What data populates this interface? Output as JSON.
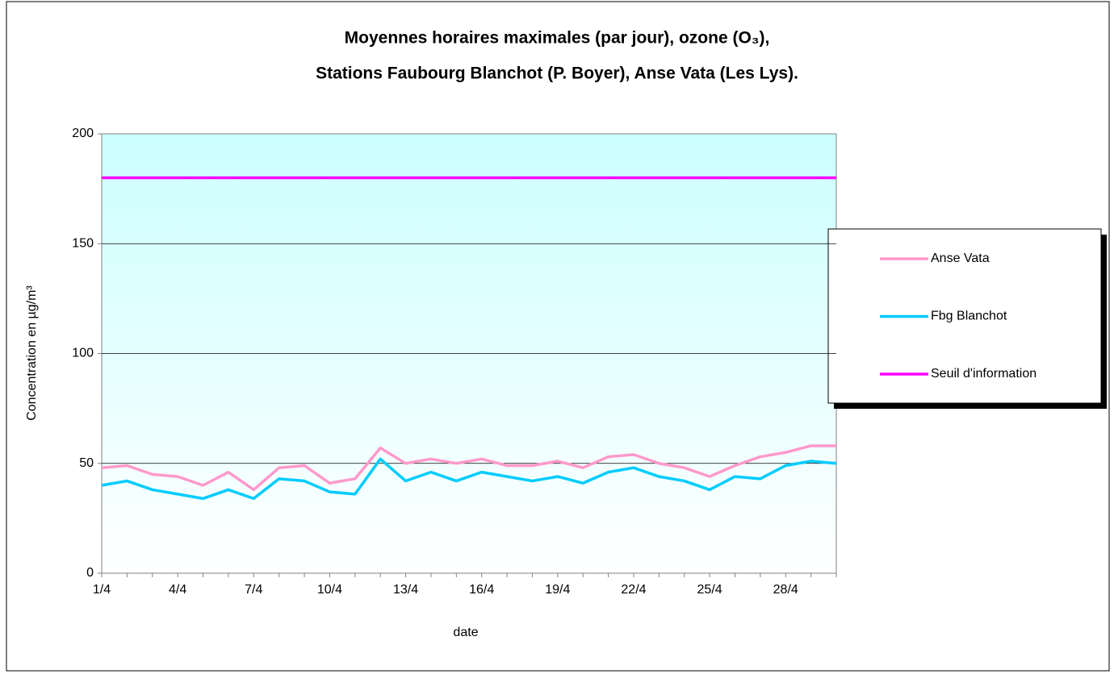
{
  "chart_data": {
    "type": "line",
    "title": [
      "Moyennes horaires maximales (par jour), ozone (O₃),",
      "Stations Faubourg Blanchot (P. Boyer), Anse Vata (Les Lys)."
    ],
    "x_label": "date",
    "y_label": "Concentration en µg/m³",
    "categories": [
      "1/4",
      null,
      null,
      "4/4",
      null,
      null,
      "7/4",
      null,
      null,
      "10/4",
      null,
      null,
      "13/4",
      null,
      null,
      "16/4",
      null,
      null,
      "19/4",
      null,
      null,
      "22/4",
      null,
      null,
      "25/4",
      null,
      null,
      "28/4",
      null,
      null
    ],
    "series": [
      {
        "name": "Anse Vata",
        "color": "#ff99cc",
        "values": [
          48,
          49,
          45,
          44,
          40,
          46,
          38,
          48,
          49,
          41,
          43,
          57,
          50,
          52,
          50,
          52,
          49,
          49,
          51,
          48,
          53,
          54,
          50,
          48,
          44,
          49,
          53,
          55,
          58,
          58
        ]
      },
      {
        "name": "Fbg Blanchot",
        "color": "#00ccff",
        "values": [
          40,
          42,
          38,
          36,
          34,
          38,
          34,
          43,
          42,
          37,
          36,
          52,
          42,
          46,
          42,
          46,
          44,
          42,
          44,
          41,
          46,
          48,
          44,
          42,
          38,
          44,
          43,
          49,
          51,
          50
        ]
      },
      {
        "name": "Seuil d'information",
        "color": "#ff00ff",
        "values": [
          180,
          180,
          180,
          180,
          180,
          180,
          180,
          180,
          180,
          180,
          180,
          180,
          180,
          180,
          180,
          180,
          180,
          180,
          180,
          180,
          180,
          180,
          180,
          180,
          180,
          180,
          180,
          180,
          180,
          180
        ]
      }
    ],
    "ylim": [
      0,
      200
    ],
    "yticks": [
      0,
      50,
      100,
      150,
      200
    ],
    "grid": true,
    "legend": "right"
  }
}
